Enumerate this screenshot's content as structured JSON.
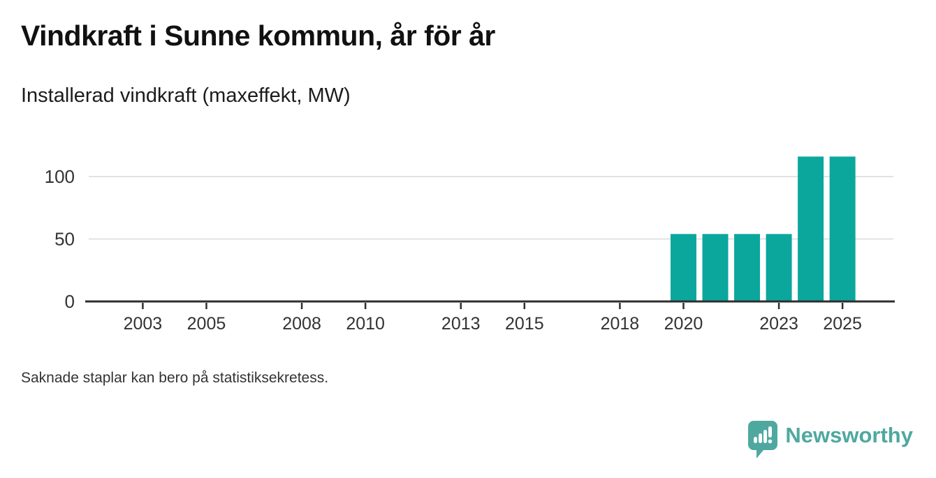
{
  "header": {
    "title": "Vindkraft i Sunne kommun, år för år",
    "subtitle": "Installerad vindkraft (maxeffekt, MW)"
  },
  "note": "Saknade staplar kan bero på statistiksekretess.",
  "brand": {
    "name": "Newsworthy",
    "icon": "newsworthy-speech-bubble-chart-icon",
    "color": "#4fa8a0"
  },
  "colors": {
    "bar": "#0ba79d",
    "axis": "#2e2e2e",
    "grid": "#e2e2e2",
    "tick_label": "#333333"
  },
  "chart_data": {
    "type": "bar",
    "title": "Vindkraft i Sunne kommun, år för år",
    "subtitle": "Installerad vindkraft (maxeffekt, MW)",
    "unit": "MW",
    "x": [
      2020,
      2021,
      2022,
      2023,
      2024,
      2025
    ],
    "values": [
      54,
      54,
      54,
      54,
      116,
      116
    ],
    "x_tick_labels": [
      "2003",
      "2005",
      "2008",
      "2010",
      "2013",
      "2015",
      "2018",
      "2020",
      "2023",
      "2025"
    ],
    "y_ticks": [
      0,
      50,
      100
    ],
    "xlim": [
      2001.3,
      2026.6
    ],
    "ylim": [
      0,
      120
    ],
    "grid": "horizontal",
    "legend": "none",
    "bar_color": "#0ba79d"
  }
}
